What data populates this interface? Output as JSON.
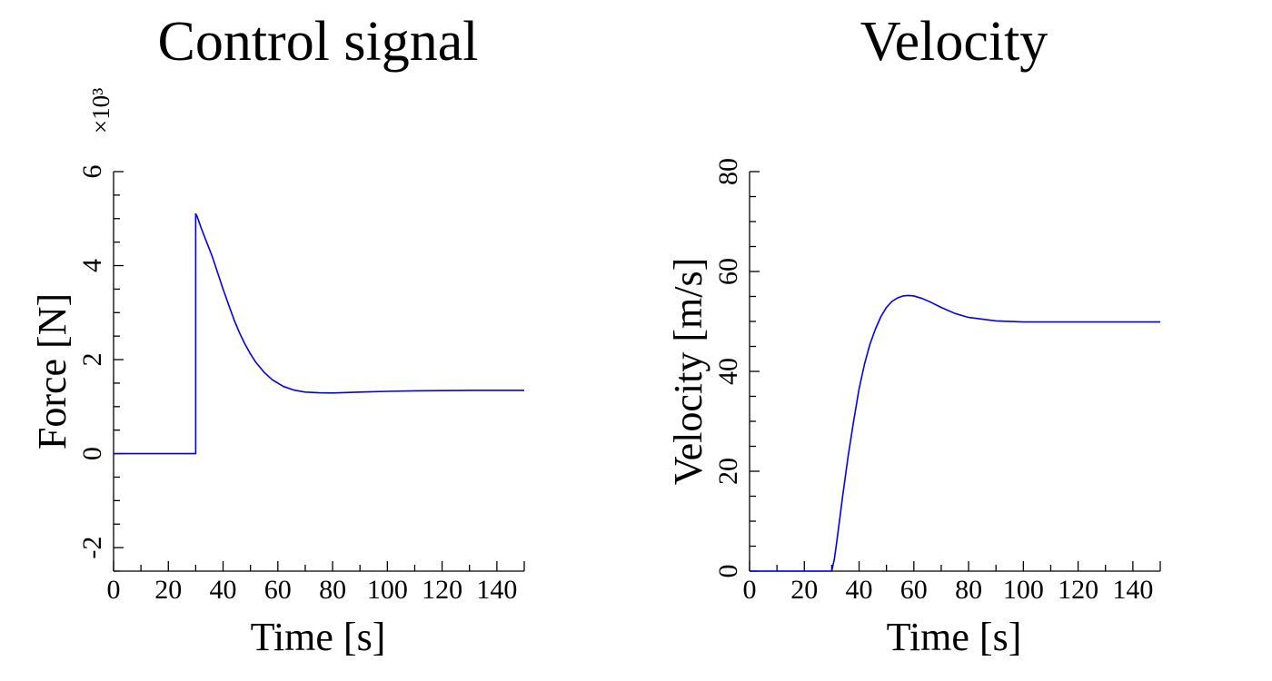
{
  "chart_data": [
    {
      "type": "line",
      "title": "Control signal",
      "xlabel": "Time [s]",
      "ylabel": "Force [N]",
      "y_multiplier_label": "×10³",
      "xlim": [
        0,
        150
      ],
      "ylim": [
        -2.5,
        6
      ],
      "xticks": [
        0,
        20,
        40,
        60,
        80,
        100,
        120,
        140
      ],
      "yticks": [
        -2,
        0,
        2,
        4,
        6
      ],
      "xtick_labels": [
        "0",
        "20",
        "40",
        "60",
        "80",
        "100",
        "120",
        "140"
      ],
      "ytick_labels": [
        "-2",
        "0",
        "2",
        "4",
        "6"
      ],
      "grid": false,
      "series": [
        {
          "color": "#0000ee",
          "x": [
            0,
            30,
            30,
            30.5,
            32,
            34,
            36,
            38,
            40,
            42,
            44,
            46,
            48,
            50,
            52,
            55,
            58,
            62,
            66,
            70,
            75,
            80,
            85,
            90,
            100,
            110,
            120,
            130,
            140,
            150
          ],
          "y": [
            0,
            0,
            5.1,
            5.05,
            4.8,
            4.5,
            4.2,
            3.85,
            3.5,
            3.17,
            2.85,
            2.57,
            2.33,
            2.12,
            1.94,
            1.73,
            1.57,
            1.43,
            1.35,
            1.31,
            1.295,
            1.29,
            1.3,
            1.31,
            1.325,
            1.335,
            1.34,
            1.345,
            1.345,
            1.345
          ]
        }
      ]
    },
    {
      "type": "line",
      "title": "Velocity",
      "xlabel": "Time [s]",
      "ylabel": "Velocity [m/s]",
      "xlim": [
        0,
        150
      ],
      "ylim": [
        0,
        80
      ],
      "xticks": [
        0,
        20,
        40,
        60,
        80,
        100,
        120,
        140
      ],
      "yticks": [
        0,
        20,
        40,
        60,
        80
      ],
      "xtick_labels": [
        "0",
        "20",
        "40",
        "60",
        "80",
        "100",
        "120",
        "140"
      ],
      "ytick_labels": [
        "0",
        "20",
        "40",
        "60",
        "80"
      ],
      "grid": false,
      "series": [
        {
          "color": "#0000ee",
          "x": [
            0,
            30,
            31,
            32,
            34,
            36,
            38,
            40,
            42,
            44,
            46,
            48,
            50,
            52,
            54,
            56,
            58,
            60,
            63,
            66,
            70,
            75,
            80,
            90,
            100,
            110,
            120,
            130,
            140,
            150
          ],
          "y": [
            0,
            0,
            2.5,
            6.5,
            15,
            23,
            30,
            36.5,
            41.5,
            45.5,
            48.5,
            51,
            52.8,
            54,
            54.7,
            55.1,
            55.2,
            55.1,
            54.6,
            53.9,
            52.8,
            51.6,
            50.8,
            50.1,
            49.9,
            49.9,
            49.9,
            49.9,
            49.9,
            49.9
          ]
        }
      ]
    }
  ]
}
